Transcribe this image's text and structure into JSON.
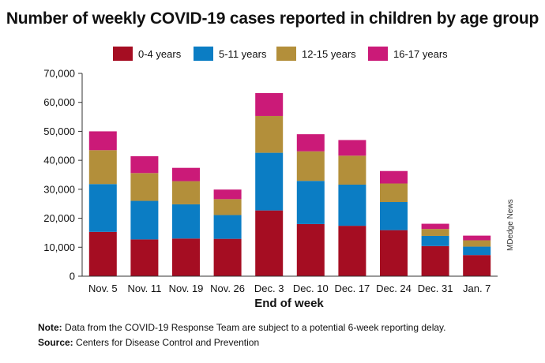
{
  "chart_data": {
    "type": "bar",
    "stacked": true,
    "title": "Number of weekly COVID-19 cases reported in children by age group",
    "xlabel": "End of week",
    "ylabel": "",
    "ylim": [
      0,
      70000
    ],
    "yticks": [
      0,
      10000,
      20000,
      30000,
      40000,
      50000,
      60000,
      70000
    ],
    "ytick_labels": [
      "0",
      "10,000",
      "20,000",
      "30,000",
      "40,000",
      "50,000",
      "60,000",
      "70,000"
    ],
    "legend_position": "top",
    "grid": false,
    "categories": [
      "Nov. 5",
      "Nov. 11",
      "Nov. 19",
      "Nov. 26",
      "Dec. 3",
      "Dec. 10",
      "Dec. 17",
      "Dec. 24",
      "Dec. 31",
      "Jan. 7"
    ],
    "series": [
      {
        "name": "0-4 years",
        "color": "#a50d22",
        "values": [
          15300,
          12700,
          13000,
          12900,
          22700,
          18000,
          17400,
          15900,
          10400,
          7300
        ]
      },
      {
        "name": "5-11 years",
        "color": "#0b7dc4",
        "values": [
          16500,
          13300,
          11800,
          8200,
          19900,
          14900,
          14200,
          9700,
          3500,
          2900
        ]
      },
      {
        "name": "12-15 years",
        "color": "#b38f3a",
        "values": [
          11700,
          9600,
          8000,
          5500,
          12700,
          10200,
          10000,
          6400,
          2400,
          2200
        ]
      },
      {
        "name": "16-17 years",
        "color": "#cb1a78",
        "values": [
          6500,
          5800,
          4600,
          3300,
          7900,
          5900,
          5400,
          4300,
          1800,
          1600
        ]
      }
    ]
  },
  "watermark": "MDedge News",
  "notes": {
    "note_label": "Note:",
    "note_text": "Data from the COVID-19 Response Team are subject to a potential 6-week reporting delay.",
    "source_label": "Source:",
    "source_text": "Centers for Disease Control and Prevention"
  }
}
